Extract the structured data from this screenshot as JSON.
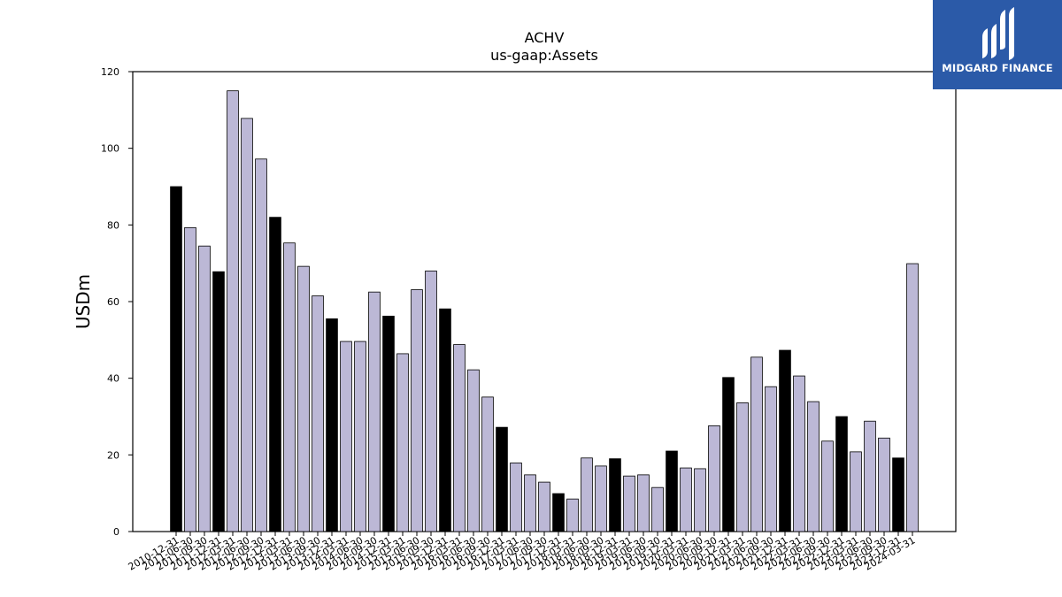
{
  "chart_data": {
    "type": "bar",
    "title": "ACHV",
    "subtitle": "us-gaap:Assets",
    "xlabel": "",
    "ylabel": "USDm",
    "ylim": [
      0,
      120
    ],
    "yticks": [
      0,
      20,
      40,
      60,
      80,
      100,
      120
    ],
    "grid": false,
    "colors": {
      "q4": "#000000",
      "other": "#bcb8d6",
      "edge": "#000000"
    },
    "categories": [
      "2010-12-31",
      "2011-06-30",
      "2011-09-30",
      "2011-12-31",
      "2012-03-31",
      "2012-06-30",
      "2012-09-30",
      "2012-12-31",
      "2013-03-31",
      "2013-06-30",
      "2013-09-30",
      "2013-12-31",
      "2014-03-31",
      "2014-06-30",
      "2014-09-30",
      "2014-12-31",
      "2015-03-31",
      "2015-06-30",
      "2015-09-30",
      "2015-12-31",
      "2016-03-31",
      "2016-06-30",
      "2016-09-30",
      "2016-12-31",
      "2017-03-31",
      "2017-06-30",
      "2017-09-30",
      "2017-12-31",
      "2018-03-31",
      "2018-06-30",
      "2018-09-30",
      "2018-12-31",
      "2019-03-31",
      "2019-06-30",
      "2019-09-30",
      "2019-12-31",
      "2020-03-31",
      "2020-06-30",
      "2020-09-30",
      "2020-12-31",
      "2021-03-31",
      "2021-06-30",
      "2021-09-30",
      "2021-12-31",
      "2022-03-31",
      "2022-06-30",
      "2022-09-30",
      "2022-12-31",
      "2023-03-31",
      "2023-06-30",
      "2023-09-30",
      "2023-12-31",
      "2024-03-31"
    ],
    "values": [
      90.0,
      79.3,
      74.5,
      67.8,
      115.0,
      107.8,
      97.2,
      82.0,
      75.3,
      69.2,
      61.5,
      55.5,
      49.6,
      49.6,
      62.5,
      56.2,
      46.4,
      63.1,
      68.0,
      58.1,
      48.8,
      42.2,
      35.1,
      27.2,
      17.9,
      14.8,
      12.9,
      9.9,
      8.5,
      19.2,
      17.1,
      19.0,
      14.5,
      14.8,
      11.5,
      21.0,
      16.6,
      16.4,
      27.6,
      40.2,
      33.6,
      45.5,
      37.8,
      47.3,
      40.6,
      33.9,
      23.6,
      30.0,
      20.8,
      28.8,
      24.4,
      19.2,
      69.9
    ]
  },
  "logo": {
    "text": "MIDGARD FINANCE",
    "icon": "midgard-logo-icon"
  }
}
